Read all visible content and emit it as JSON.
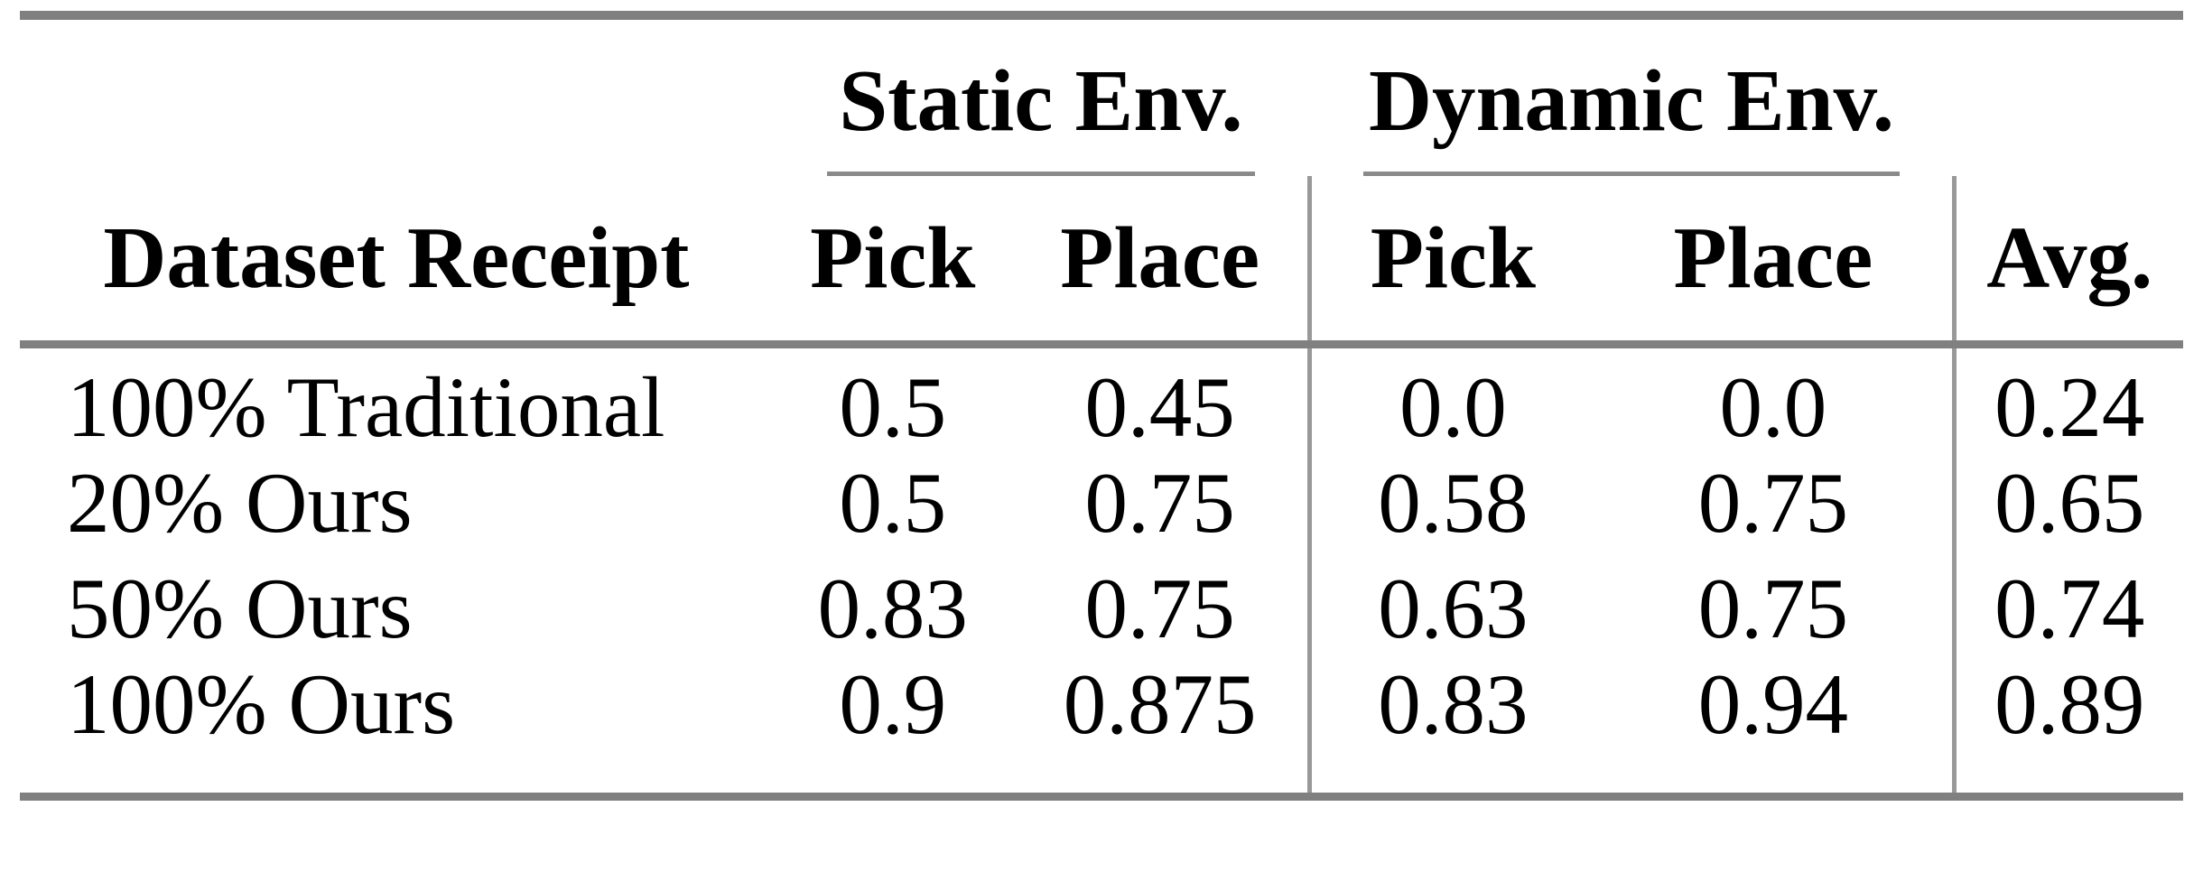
{
  "table": {
    "header": {
      "dataset": "Dataset Receipt",
      "static_group": "Static Env.",
      "dynamic_group": "Dynamic Env.",
      "static_pick": "Pick",
      "static_place": "Place",
      "dynamic_pick": "Pick",
      "dynamic_place": "Place",
      "avg": "Avg."
    },
    "rows": [
      {
        "label": "100% Traditional",
        "static_pick": "0.5",
        "static_place": "0.45",
        "dynamic_pick": "0.0",
        "dynamic_place": "0.0",
        "avg": "0.24"
      },
      {
        "label": "20% Ours",
        "static_pick": "0.5",
        "static_place": "0.75",
        "dynamic_pick": "0.58",
        "dynamic_place": "0.75",
        "avg": "0.65"
      },
      {
        "label": "50% Ours",
        "static_pick": "0.83",
        "static_place": "0.75",
        "dynamic_pick": "0.63",
        "dynamic_place": "0.75",
        "avg": "0.74"
      },
      {
        "label": "100% Ours",
        "static_pick": "0.9",
        "static_place": "0.875",
        "dynamic_pick": "0.83",
        "dynamic_place": "0.94",
        "avg": "0.89"
      }
    ],
    "colors": {
      "thick_rule": "#808080",
      "vertical_rule": "#999999",
      "cmidrule": "#8a8a8a",
      "text": "#000000",
      "background": "#ffffff"
    }
  }
}
